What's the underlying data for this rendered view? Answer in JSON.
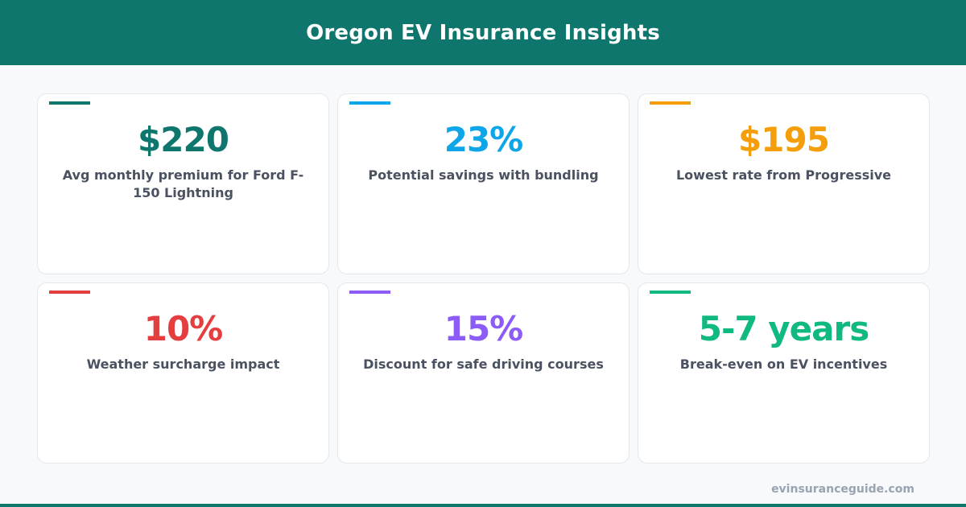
{
  "header": {
    "title": "Oregon EV Insurance Insights"
  },
  "cards": [
    {
      "value": "$220",
      "label": "Avg monthly premium for Ford F-150 Lightning",
      "color": "#0f766e"
    },
    {
      "value": "23%",
      "label": "Potential savings with bundling",
      "color": "#0ea5e9"
    },
    {
      "value": "$195",
      "label": "Lowest rate from Progressive",
      "color": "#f59e0b"
    },
    {
      "value": "10%",
      "label": "Weather surcharge impact",
      "color": "#e53e3e"
    },
    {
      "value": "15%",
      "label": "Discount for safe driving courses",
      "color": "#8b5cf6"
    },
    {
      "value": "5-7 years",
      "label": "Break-even on EV incentives",
      "color": "#10b981"
    }
  ],
  "footer": {
    "site": "evinsuranceguide.com"
  }
}
